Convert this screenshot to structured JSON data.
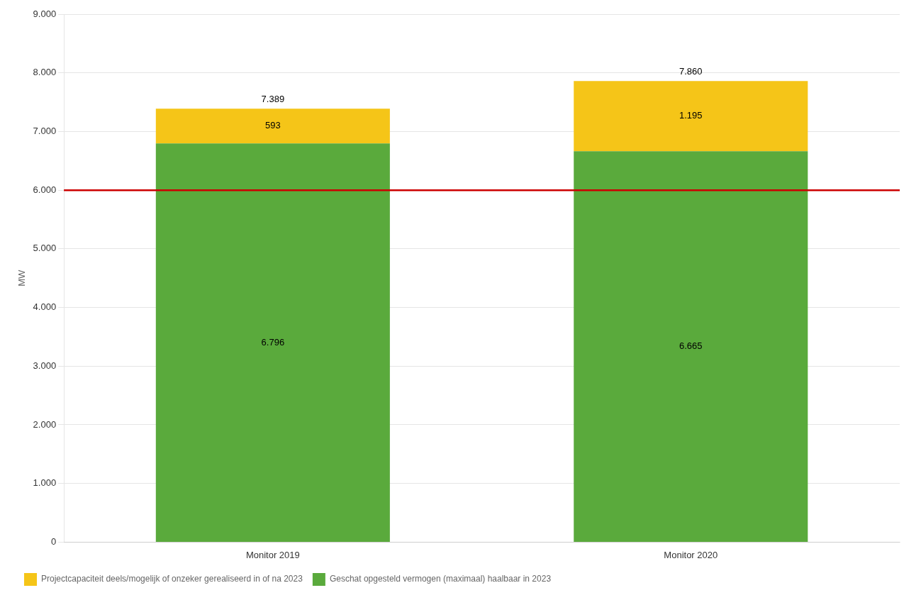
{
  "chart_data": {
    "type": "bar",
    "stacked": true,
    "categories": [
      "Monitor 2019",
      "Monitor 2020"
    ],
    "series": [
      {
        "name": "Geschat opgesteld vermogen (maximaal) haalbaar in 2023",
        "color": "#5aaa3c",
        "values": [
          6796,
          6665
        ],
        "value_labels": [
          "6.796",
          "6.665"
        ]
      },
      {
        "name": "Projectcapaciteit deels/mogelijk of onzeker gerealiseerd in of na 2023",
        "color": "#f5c518",
        "values": [
          593,
          1195
        ],
        "value_labels": [
          "593",
          "1.195"
        ]
      }
    ],
    "totals": {
      "values": [
        7389,
        7860
      ],
      "value_labels": [
        "7.389",
        "7.860"
      ]
    },
    "lines": [
      {
        "y": 6000,
        "color": "#cc0000"
      }
    ],
    "data_labels": true,
    "ylabel": "MW",
    "ylim": [
      0,
      9000
    ],
    "yticks": [
      0,
      {
        "value": 1000,
        "label": "1.000"
      },
      {
        "value": 2000,
        "label": "2.000"
      },
      {
        "value": 3000,
        "label": "3.000"
      },
      {
        "value": 4000,
        "label": "4.000"
      },
      {
        "value": 5000,
        "label": "5.000"
      },
      {
        "value": 6000,
        "label": "6.000"
      },
      {
        "value": 7000,
        "label": "7.000"
      },
      {
        "value": 8000,
        "label": "8.000"
      },
      {
        "value": 9000,
        "label": "9.000"
      }
    ],
    "grid": true,
    "legend": "bottom"
  }
}
